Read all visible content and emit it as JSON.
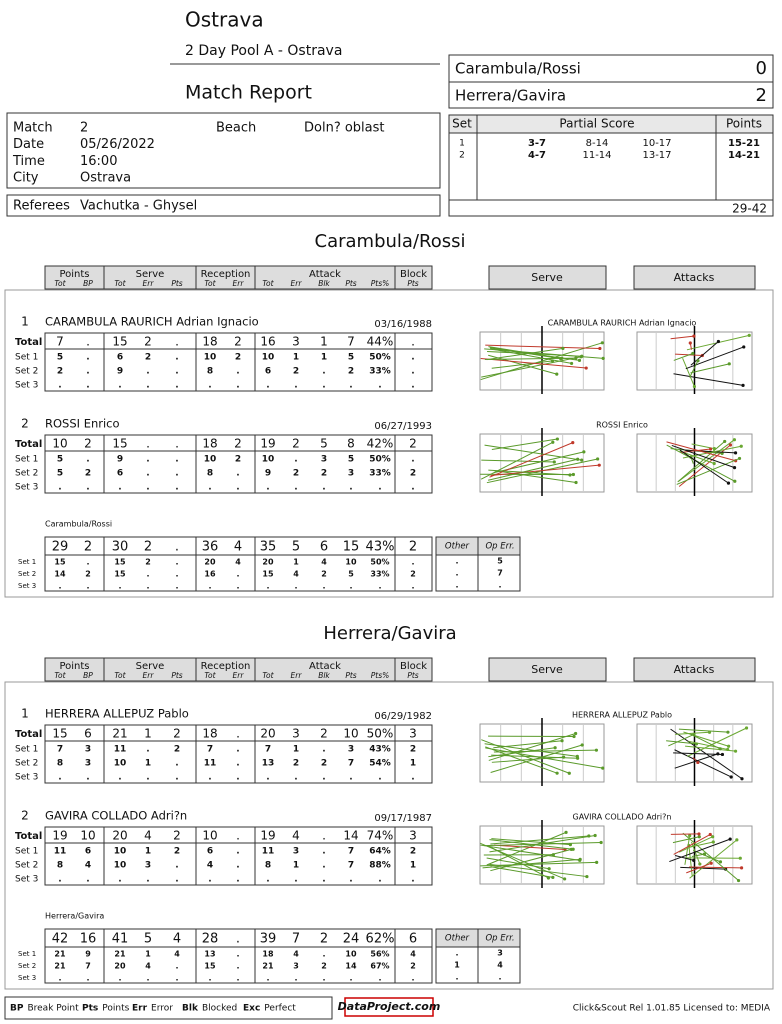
{
  "header": {
    "title": "Ostrava",
    "subtitle": "2 Day Pool A - Ostrava",
    "report_title": "Match Report"
  },
  "info": [
    {
      "label": "Match",
      "value": "2"
    },
    {
      "label": "Date",
      "value": "05/26/2022"
    },
    {
      "label": "Time",
      "value": "16:00"
    },
    {
      "label": "City",
      "value": "Ostrava"
    }
  ],
  "beach": {
    "label": "Beach",
    "value": "Doln? oblast"
  },
  "referees": {
    "label": "Referees",
    "value": "Vachutka - Ghysel"
  },
  "score": [
    {
      "name": "Carambula/Rossi",
      "sets": "0"
    },
    {
      "name": "Herrera/Gavira",
      "sets": "2"
    }
  ],
  "partial": {
    "headers": [
      "Set",
      "Partial Score",
      "Points"
    ],
    "rows": [
      {
        "set": "1",
        "partials": [
          "3-7",
          "8-14",
          "10-17"
        ],
        "points": "15-21"
      },
      {
        "set": "2",
        "partials": [
          "4-7",
          "11-14",
          "13-17"
        ],
        "points": "14-21"
      }
    ],
    "total": "29-42"
  },
  "columns": [
    {
      "name": "Points",
      "subs": [
        "Tot",
        "BP"
      ]
    },
    {
      "name": "Serve",
      "subs": [
        "Tot",
        "Err",
        "Pts"
      ]
    },
    {
      "name": "Reception",
      "subs": [
        "Tot",
        "Err"
      ]
    },
    {
      "name": "Attack",
      "subs": [
        "Tot",
        "Err",
        "Blk",
        "Pts",
        "Pts%"
      ]
    },
    {
      "name": "Block",
      "subs": [
        "Pts"
      ]
    }
  ],
  "charts": [
    "Serve",
    "Attacks"
  ],
  "row_labels": [
    "Total",
    "Set 1",
    "Set 2",
    "Set 3"
  ],
  "teams": [
    {
      "name": "Carambula/Rossi",
      "players": [
        {
          "number": "1",
          "name": "CARAMBULA RAURICH Adrian Ignacio",
          "dob": "03/16/1988",
          "rows": [
            [
              "7",
              ".",
              "15",
              "2",
              ".",
              "18",
              "2",
              "16",
              "3",
              "1",
              "7",
              "44%",
              "."
            ],
            [
              "5",
              ".",
              "6",
              "2",
              ".",
              "10",
              "2",
              "10",
              "1",
              "1",
              "5",
              "50%",
              "."
            ],
            [
              "2",
              ".",
              "9",
              ".",
              ".",
              "8",
              ".",
              "6",
              "2",
              ".",
              "2",
              "33%",
              "."
            ],
            [
              ".",
              ".",
              ".",
              ".",
              ".",
              ".",
              ".",
              ".",
              ".",
              ".",
              ".",
              ".",
              "."
            ]
          ]
        },
        {
          "number": "2",
          "name": "ROSSI Enrico",
          "dob": "06/27/1993",
          "rows": [
            [
              "10",
              "2",
              "15",
              ".",
              ".",
              "18",
              "2",
              "19",
              "2",
              "5",
              "8",
              "42%",
              "2"
            ],
            [
              "5",
              ".",
              "9",
              ".",
              ".",
              "10",
              "2",
              "10",
              ".",
              "3",
              "5",
              "50%",
              "."
            ],
            [
              "5",
              "2",
              "6",
              ".",
              ".",
              "8",
              ".",
              "9",
              "2",
              "2",
              "3",
              "33%",
              "2"
            ],
            [
              ".",
              ".",
              ".",
              ".",
              ".",
              ".",
              ".",
              ".",
              ".",
              ".",
              ".",
              ".",
              "."
            ]
          ]
        }
      ],
      "summary": {
        "label": "Carambula/Rossi",
        "rows": [
          [
            "29",
            "2",
            "30",
            "2",
            ".",
            "36",
            "4",
            "35",
            "5",
            "6",
            "15",
            "43%",
            "2"
          ],
          [
            "15",
            ".",
            "15",
            "2",
            ".",
            "20",
            "4",
            "20",
            "1",
            "4",
            "10",
            "50%",
            "."
          ],
          [
            "14",
            "2",
            "15",
            ".",
            ".",
            "16",
            ".",
            "15",
            "4",
            "2",
            "5",
            "33%",
            "2"
          ],
          [
            ".",
            ".",
            ".",
            ".",
            ".",
            ".",
            ".",
            ".",
            ".",
            ".",
            ".",
            ".",
            "."
          ]
        ],
        "extra_headers": [
          "Other",
          "Op Err."
        ],
        "extra_rows": [
          [
            ".",
            "5"
          ],
          [
            ".",
            "7"
          ],
          [
            ".",
            "."
          ]
        ]
      }
    },
    {
      "name": "Herrera/Gavira",
      "players": [
        {
          "number": "1",
          "name": "HERRERA ALLEPUZ Pablo",
          "dob": "06/29/1982",
          "rows": [
            [
              "15",
              "6",
              "21",
              "1",
              "2",
              "18",
              ".",
              "20",
              "3",
              "2",
              "10",
              "50%",
              "3"
            ],
            [
              "7",
              "3",
              "11",
              ".",
              "2",
              "7",
              ".",
              "7",
              "1",
              ".",
              "3",
              "43%",
              "2"
            ],
            [
              "8",
              "3",
              "10",
              "1",
              ".",
              "11",
              ".",
              "13",
              "2",
              "2",
              "7",
              "54%",
              "1"
            ],
            [
              ".",
              ".",
              ".",
              ".",
              ".",
              ".",
              ".",
              ".",
              ".",
              ".",
              ".",
              ".",
              "."
            ]
          ]
        },
        {
          "number": "2",
          "name": "GAVIRA COLLADO Adri?n",
          "dob": "09/17/1987",
          "rows": [
            [
              "19",
              "10",
              "20",
              "4",
              "2",
              "10",
              ".",
              "19",
              "4",
              ".",
              "14",
              "74%",
              "3"
            ],
            [
              "11",
              "6",
              "10",
              "1",
              "2",
              "6",
              ".",
              "11",
              "3",
              ".",
              "7",
              "64%",
              "2"
            ],
            [
              "8",
              "4",
              "10",
              "3",
              ".",
              "4",
              ".",
              "8",
              "1",
              ".",
              "7",
              "88%",
              "1"
            ],
            [
              ".",
              ".",
              ".",
              ".",
              ".",
              ".",
              ".",
              ".",
              ".",
              ".",
              ".",
              ".",
              "."
            ]
          ]
        }
      ],
      "summary": {
        "label": "Herrera/Gavira",
        "rows": [
          [
            "42",
            "16",
            "41",
            "5",
            "4",
            "28",
            ".",
            "39",
            "7",
            "2",
            "24",
            "62%",
            "6"
          ],
          [
            "21",
            "9",
            "21",
            "1",
            "4",
            "13",
            ".",
            "18",
            "4",
            ".",
            "10",
            "56%",
            "4"
          ],
          [
            "21",
            "7",
            "20",
            "4",
            ".",
            "15",
            ".",
            "21",
            "3",
            "2",
            "14",
            "67%",
            "2"
          ],
          [
            ".",
            ".",
            ".",
            ".",
            ".",
            ".",
            ".",
            ".",
            ".",
            ".",
            ".",
            ".",
            "."
          ]
        ],
        "extra_headers": [
          "Other",
          "Op Err."
        ],
        "extra_rows": [
          [
            ".",
            "3"
          ],
          [
            "1",
            "4"
          ],
          [
            ".",
            "."
          ]
        ]
      }
    }
  ],
  "footer": {
    "legend": [
      {
        "key": "BP",
        "text": "Break Point"
      },
      {
        "key": "Pts",
        "text": "Points"
      },
      {
        "key": "Err",
        "text": "Error"
      },
      {
        "key": "Blk",
        "text": "Blocked"
      },
      {
        "key": "Exc",
        "text": "Perfect"
      }
    ],
    "logo": "DataProject.com",
    "version": "Click&Scout Rel 1.01.85  Licensed to: MEDIA"
  }
}
